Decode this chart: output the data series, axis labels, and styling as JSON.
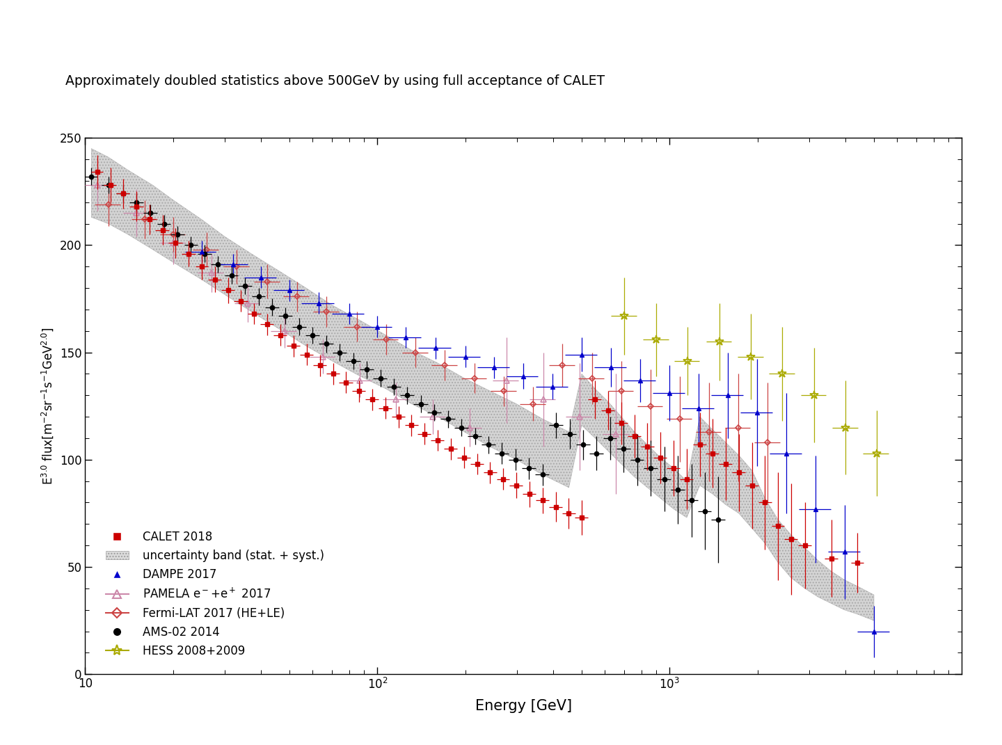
{
  "title": "Approximately doubled statistics above 500GeV by using full acceptance of CALET",
  "xlabel": "Energy [GeV]",
  "ylabel": "E$^{3.0}$ flux[m$^{-2}$sr$^{-1}$s$^{-1}$GeV$^{2.0}$]",
  "xlim": [
    10,
    10000
  ],
  "ylim": [
    0,
    250
  ],
  "calet2018": {
    "color": "#cc0000",
    "label": "CALET 2018",
    "x": [
      11.0,
      12.2,
      13.5,
      15.0,
      16.6,
      18.4,
      20.4,
      22.6,
      25.1,
      27.8,
      30.8,
      34.1,
      37.9,
      42.0,
      46.6,
      51.7,
      57.3,
      63.5,
      70.5,
      78.1,
      86.6,
      96.0,
      106.4,
      118.0,
      130.8,
      145.0,
      160.8,
      178.3,
      197.7,
      219.2,
      243.0,
      269.5,
      298.9,
      331.4,
      367.4,
      407.4,
      451.6,
      500.7,
      555.1,
      615.6,
      682.5,
      756.9,
      839.2,
      930.2,
      1031.6,
      1144.0,
      1268.0,
      1403.0,
      1556.0,
      1724.0,
      1913.0,
      2119.0,
      2350.0,
      2600.0,
      2900.0,
      3570.0,
      4390.0
    ],
    "y": [
      234,
      228,
      224,
      218,
      212,
      207,
      201,
      196,
      190,
      184,
      179,
      174,
      168,
      163,
      158,
      153,
      149,
      144,
      140,
      136,
      132,
      128,
      124,
      120,
      116,
      112,
      109,
      105,
      101,
      98,
      94,
      91,
      88,
      84,
      81,
      78,
      75,
      73,
      128,
      123,
      117,
      111,
      106,
      101,
      96,
      91,
      107,
      103,
      98,
      94,
      88,
      80,
      69,
      63,
      60,
      54,
      52
    ],
    "xerr_lo": [
      0.5,
      0.6,
      0.7,
      0.8,
      0.9,
      1.0,
      1.1,
      1.2,
      1.3,
      1.4,
      1.6,
      1.8,
      2.0,
      2.2,
      2.4,
      2.7,
      3.0,
      3.3,
      3.7,
      4.1,
      4.5,
      5.0,
      5.5,
      6.1,
      6.8,
      7.5,
      8.3,
      9.3,
      10.3,
      11.4,
      12.6,
      14.0,
      15.5,
      17.2,
      19.1,
      21.2,
      23.5,
      26.0,
      28.8,
      32.0,
      35.5,
      39.3,
      43.6,
      48.4,
      53.6,
      59.4,
      66.0,
      73.0,
      81.0,
      90.0,
      100.0,
      110.0,
      122.0,
      135.0,
      150.0,
      185.0,
      228.0
    ],
    "xerr_hi": [
      0.5,
      0.6,
      0.7,
      0.8,
      0.9,
      1.0,
      1.1,
      1.2,
      1.3,
      1.4,
      1.6,
      1.8,
      2.0,
      2.2,
      2.4,
      2.7,
      3.0,
      3.3,
      3.7,
      4.1,
      4.5,
      5.0,
      5.5,
      6.1,
      6.8,
      7.5,
      8.3,
      9.3,
      10.3,
      11.4,
      12.6,
      14.0,
      15.5,
      17.2,
      19.1,
      21.2,
      23.5,
      26.0,
      28.8,
      32.0,
      35.5,
      39.3,
      43.6,
      48.4,
      53.6,
      59.4,
      66.0,
      73.0,
      81.0,
      90.0,
      100.0,
      110.0,
      122.0,
      135.0,
      150.0,
      185.0,
      228.0
    ],
    "yerr": [
      8,
      8,
      7,
      7,
      7,
      7,
      7,
      6,
      6,
      6,
      6,
      5,
      5,
      5,
      5,
      5,
      5,
      5,
      5,
      5,
      5,
      5,
      5,
      5,
      5,
      5,
      5,
      5,
      5,
      5,
      5,
      5,
      6,
      6,
      6,
      7,
      7,
      8,
      9,
      9,
      10,
      10,
      11,
      12,
      13,
      14,
      15,
      16,
      17,
      18,
      20,
      22,
      25,
      26,
      20,
      18,
      14
    ]
  },
  "calet_band": {
    "x": [
      10.5,
      12.0,
      14.0,
      17.0,
      20.0,
      25.0,
      30.0,
      37.0,
      46.0,
      57.0,
      70.0,
      87.0,
      107.0,
      131.0,
      161.0,
      198.0,
      243.0,
      299.0,
      367.0,
      452.0,
      500.0,
      556.0,
      616.0,
      683.0,
      757.0,
      839.0,
      930.0,
      1032.0,
      1144.0,
      1268.0,
      1403.0,
      1556.0,
      1724.0,
      1913.0,
      2119.0,
      2350.0,
      2600.0,
      2900.0,
      3220.0,
      3570.0,
      3960.0,
      4390.0,
      5000.0
    ],
    "y_lo": [
      213,
      210,
      205,
      198,
      192,
      184,
      177,
      169,
      161,
      153,
      146,
      139,
      133,
      126,
      120,
      113,
      106,
      100,
      93,
      87,
      116,
      110,
      104,
      98,
      92,
      87,
      82,
      77,
      73,
      88,
      84,
      79,
      75,
      68,
      61,
      52,
      45,
      40,
      36,
      33,
      30,
      28,
      25
    ],
    "y_hi": [
      245,
      241,
      235,
      228,
      221,
      212,
      204,
      196,
      188,
      180,
      172,
      165,
      158,
      151,
      145,
      138,
      132,
      126,
      119,
      113,
      140,
      133,
      127,
      120,
      113,
      107,
      101,
      96,
      90,
      120,
      114,
      108,
      102,
      95,
      82,
      72,
      65,
      59,
      53,
      48,
      44,
      41,
      37
    ]
  },
  "dampe2017": {
    "color": "#0000cc",
    "label": "DAMPE 2017",
    "x": [
      25.0,
      32.0,
      40.0,
      50.0,
      63.0,
      80.0,
      100.0,
      125.0,
      158.0,
      200.0,
      251.0,
      316.0,
      398.0,
      501.0,
      631.0,
      794.0,
      1000.0,
      1259.0,
      1585.0,
      1995.0,
      2512.0,
      3162.0,
      3981.0,
      5012.0
    ],
    "y": [
      197,
      191,
      185,
      179,
      173,
      168,
      162,
      157,
      152,
      148,
      143,
      139,
      134,
      149,
      143,
      137,
      131,
      124,
      130,
      122,
      103,
      77,
      57,
      20
    ],
    "xerr_lo": [
      3.0,
      4.0,
      5.0,
      6.0,
      8.0,
      10.0,
      12.0,
      16.0,
      20.0,
      25.0,
      31.0,
      39.0,
      50.0,
      63.0,
      79.0,
      100.0,
      125.0,
      158.0,
      199.0,
      251.0,
      316.0,
      398.0,
      501.0,
      631.0
    ],
    "xerr_hi": [
      3.0,
      4.0,
      5.0,
      6.0,
      8.0,
      10.0,
      12.0,
      16.0,
      20.0,
      25.0,
      31.0,
      39.0,
      50.0,
      63.0,
      79.0,
      100.0,
      125.0,
      158.0,
      199.0,
      251.0,
      316.0,
      398.0,
      501.0,
      631.0
    ],
    "yerr": [
      5,
      5,
      5,
      5,
      5,
      5,
      5,
      5,
      5,
      5,
      5,
      6,
      6,
      8,
      9,
      10,
      13,
      16,
      20,
      25,
      28,
      25,
      22,
      12
    ]
  },
  "pamela2017": {
    "color": "#cc88aa",
    "label": "PAMELA e$^-$+e$^+$ 2017",
    "x": [
      11.0,
      15.0,
      20.0,
      27.0,
      36.0,
      48.0,
      65.0,
      87.0,
      116.0,
      155.0,
      207.0,
      276.0,
      369.0,
      491.0,
      655.0
    ],
    "y": [
      228,
      215,
      201,
      187,
      173,
      160,
      148,
      137,
      128,
      120,
      115,
      137,
      128,
      120,
      112
    ],
    "xerr_lo": [
      1.0,
      1.5,
      2.0,
      2.7,
      3.6,
      4.8,
      6.5,
      8.7,
      11.6,
      15.5,
      20.7,
      27.6,
      36.9,
      49.1,
      65.5
    ],
    "xerr_hi": [
      1.0,
      1.5,
      2.0,
      2.7,
      3.6,
      4.8,
      6.5,
      8.7,
      11.6,
      15.5,
      20.7,
      27.6,
      36.9,
      49.1,
      65.5
    ],
    "yerr": [
      12,
      11,
      10,
      9,
      9,
      8,
      8,
      8,
      8,
      8,
      9,
      20,
      22,
      25,
      28
    ]
  },
  "fermi2017": {
    "color": "#cc4444",
    "label": "Fermi-LAT 2017 (HE+LE)",
    "x": [
      12.0,
      16.0,
      20.0,
      26.0,
      33.0,
      42.0,
      53.0,
      67.0,
      85.0,
      107.0,
      135.0,
      170.0,
      215.0,
      271.0,
      341.0,
      430.0,
      542.0,
      683.0,
      860.0,
      1083.0,
      1364.0,
      1718.0,
      2163.0
    ],
    "y": [
      219,
      212,
      205,
      198,
      190,
      183,
      176,
      169,
      162,
      156,
      150,
      144,
      138,
      132,
      126,
      144,
      138,
      132,
      125,
      119,
      113,
      115,
      108
    ],
    "xerr_lo": [
      1.2,
      1.6,
      2.0,
      2.6,
      3.3,
      4.2,
      5.3,
      6.7,
      8.5,
      10.7,
      13.5,
      17.0,
      21.5,
      27.1,
      34.1,
      43.0,
      54.2,
      68.3,
      86.0,
      108.3,
      136.4,
      171.8,
      216.3
    ],
    "xerr_hi": [
      1.2,
      1.6,
      2.0,
      2.6,
      3.3,
      4.2,
      5.3,
      6.7,
      8.5,
      10.7,
      13.5,
      17.0,
      21.5,
      27.1,
      34.1,
      43.0,
      54.2,
      68.3,
      86.0,
      108.3,
      136.4,
      171.8,
      216.3
    ],
    "yerr": [
      10,
      9,
      8,
      8,
      8,
      8,
      7,
      7,
      7,
      7,
      7,
      7,
      7,
      7,
      8,
      10,
      12,
      14,
      17,
      20,
      23,
      25,
      28
    ]
  },
  "ams2014": {
    "color": "#000000",
    "label": "AMS-02 2014",
    "x": [
      10.5,
      12.0,
      13.5,
      15.0,
      16.7,
      18.6,
      20.7,
      23.0,
      25.6,
      28.5,
      31.7,
      35.2,
      39.2,
      43.6,
      48.5,
      54.0,
      60.0,
      66.8,
      74.3,
      82.7,
      92.0,
      102.3,
      113.8,
      126.6,
      140.8,
      156.7,
      174.3,
      193.9,
      215.7,
      239.9,
      266.8,
      296.8,
      330.1,
      367.2,
      408.6,
      454.5,
      505.5,
      562.4,
      625.5,
      695.9,
      774.1,
      861.1,
      958.0,
      1066.0,
      1186.0,
      1319.0,
      1468.0
    ],
    "y": [
      232,
      228,
      224,
      220,
      215,
      210,
      205,
      200,
      196,
      191,
      186,
      181,
      176,
      171,
      167,
      162,
      158,
      154,
      150,
      146,
      142,
      138,
      134,
      130,
      126,
      122,
      119,
      115,
      111,
      107,
      103,
      100,
      96,
      93,
      116,
      112,
      107,
      103,
      110,
      105,
      100,
      96,
      91,
      86,
      81,
      76,
      72
    ],
    "xerr_lo": [
      0.5,
      0.6,
      0.7,
      0.8,
      0.9,
      1.0,
      1.1,
      1.2,
      1.4,
      1.6,
      1.7,
      1.9,
      2.1,
      2.4,
      2.7,
      3.0,
      3.3,
      3.7,
      4.1,
      4.6,
      5.1,
      5.7,
      6.3,
      7.0,
      7.8,
      8.7,
      9.6,
      10.7,
      11.8,
      13.1,
      14.5,
      16.1,
      17.9,
      19.9,
      22.1,
      24.5,
      27.2,
      30.3,
      33.7,
      37.5,
      41.7,
      46.3,
      51.5,
      57.3,
      63.8,
      71.0,
      79.0
    ],
    "xerr_hi": [
      0.5,
      0.6,
      0.7,
      0.8,
      0.9,
      1.0,
      1.1,
      1.2,
      1.4,
      1.6,
      1.7,
      1.9,
      2.1,
      2.4,
      2.7,
      3.0,
      3.3,
      3.7,
      4.1,
      4.6,
      5.1,
      5.7,
      6.3,
      7.0,
      7.8,
      8.7,
      9.6,
      10.7,
      11.8,
      13.1,
      14.5,
      16.1,
      17.9,
      19.9,
      22.1,
      24.5,
      27.2,
      30.3,
      33.7,
      37.5,
      41.7,
      46.3,
      51.5,
      57.3,
      63.8,
      71.0,
      79.0
    ],
    "yerr": [
      4,
      4,
      4,
      4,
      4,
      4,
      4,
      4,
      4,
      4,
      4,
      4,
      4,
      4,
      4,
      4,
      4,
      4,
      4,
      4,
      4,
      4,
      4,
      4,
      4,
      4,
      4,
      4,
      4,
      4,
      5,
      5,
      5,
      5,
      6,
      7,
      7,
      8,
      10,
      11,
      12,
      13,
      15,
      16,
      17,
      18,
      20
    ]
  },
  "hess": {
    "color": "#aaaa00",
    "label": "HESS 2008+2009",
    "x": [
      700.0,
      900.0,
      1150.0,
      1480.0,
      1900.0,
      2430.0,
      3120.0,
      4000.0,
      5100.0
    ],
    "y": [
      167,
      156,
      146,
      155,
      148,
      140,
      130,
      115,
      103
    ],
    "xerr_lo": [
      70.0,
      90.0,
      115.0,
      148.0,
      190.0,
      243.0,
      312.0,
      400.0,
      510.0
    ],
    "xerr_hi": [
      70.0,
      90.0,
      115.0,
      148.0,
      190.0,
      243.0,
      312.0,
      400.0,
      510.0
    ],
    "yerr": [
      18,
      17,
      16,
      18,
      20,
      22,
      22,
      22,
      20
    ]
  }
}
